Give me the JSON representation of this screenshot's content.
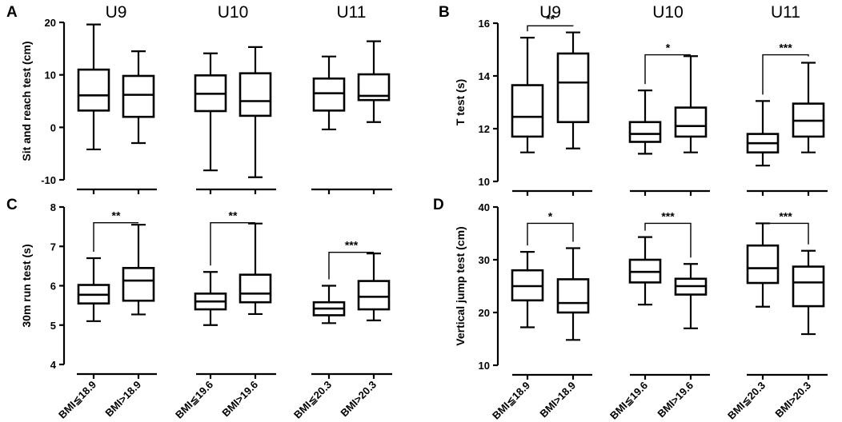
{
  "chart_data": [
    {
      "panel": "A",
      "type": "box",
      "group_titles": [
        "U9",
        "U10",
        "U11"
      ],
      "ylabel": "Sit and reach test (cm)",
      "ylim": [
        -10,
        20
      ],
      "yticks": [
        -10,
        0,
        10,
        20
      ],
      "categories": [
        "BMI≦18.9",
        "BMI>18.9",
        "BMI≦19.6",
        "BMI>19.6",
        "BMI≦20.3",
        "BMI>20.3"
      ],
      "boxes": [
        {
          "min": -4.2,
          "q1": 3.2,
          "median": 6.1,
          "q3": 11.0,
          "max": 19.6
        },
        {
          "min": -3.0,
          "q1": 2.0,
          "median": 6.2,
          "q3": 9.8,
          "max": 14.5
        },
        {
          "min": -8.2,
          "q1": 3.1,
          "median": 6.4,
          "q3": 9.9,
          "max": 14.1
        },
        {
          "min": -9.5,
          "q1": 2.2,
          "median": 5.0,
          "q3": 10.3,
          "max": 15.3
        },
        {
          "min": -0.4,
          "q1": 3.2,
          "median": 6.5,
          "q3": 9.3,
          "max": 13.5
        },
        {
          "min": 1.0,
          "q1": 5.2,
          "median": 6.0,
          "q3": 10.1,
          "max": 16.4
        }
      ],
      "significance": []
    },
    {
      "panel": "B",
      "type": "box",
      "group_titles": [
        "U9",
        "U10",
        "U11"
      ],
      "ylabel": "T test (s)",
      "ylim": [
        10,
        16
      ],
      "yticks": [
        10,
        12,
        14,
        16
      ],
      "categories": [
        "BMI≦18.9",
        "BMI>18.9",
        "BMI≦19.6",
        "BMI>19.6",
        "BMI≦20.3",
        "BMI>20.3"
      ],
      "boxes": [
        {
          "min": 11.1,
          "q1": 11.7,
          "median": 12.45,
          "q3": 13.65,
          "max": 15.45
        },
        {
          "min": 11.25,
          "q1": 12.25,
          "median": 13.75,
          "q3": 14.85,
          "max": 15.65
        },
        {
          "min": 11.05,
          "q1": 11.5,
          "median": 11.8,
          "q3": 12.25,
          "max": 13.45
        },
        {
          "min": 11.1,
          "q1": 11.7,
          "median": 12.1,
          "q3": 12.8,
          "max": 14.75
        },
        {
          "min": 10.6,
          "q1": 11.1,
          "median": 11.45,
          "q3": 11.8,
          "max": 13.05
        },
        {
          "min": 11.1,
          "q1": 11.7,
          "median": 12.3,
          "q3": 12.95,
          "max": 14.5
        }
      ],
      "significance": [
        {
          "pair": [
            0,
            1
          ],
          "label": "**",
          "y": 15.9
        },
        {
          "pair": [
            2,
            3
          ],
          "label": "*",
          "y": 14.8
        },
        {
          "pair": [
            4,
            5
          ],
          "label": "***",
          "y": 14.8
        }
      ]
    },
    {
      "panel": "C",
      "type": "box",
      "ylabel": "30m run test (s)",
      "ylim": [
        4,
        8
      ],
      "yticks": [
        4,
        5,
        6,
        7,
        8
      ],
      "categories": [
        "BMI≦18.9",
        "BMI>18.9",
        "BMI≦19.6",
        "BMI>19.6",
        "BMI≦20.3",
        "BMI>20.3"
      ],
      "boxes": [
        {
          "min": 5.1,
          "q1": 5.55,
          "median": 5.77,
          "q3": 6.02,
          "max": 6.7
        },
        {
          "min": 5.27,
          "q1": 5.62,
          "median": 6.13,
          "q3": 6.45,
          "max": 7.55
        },
        {
          "min": 5.0,
          "q1": 5.4,
          "median": 5.6,
          "q3": 5.8,
          "max": 6.35
        },
        {
          "min": 5.28,
          "q1": 5.58,
          "median": 5.8,
          "q3": 6.28,
          "max": 7.58
        },
        {
          "min": 5.05,
          "q1": 5.25,
          "median": 5.42,
          "q3": 5.58,
          "max": 6.0
        },
        {
          "min": 5.12,
          "q1": 5.4,
          "median": 5.72,
          "q3": 6.12,
          "max": 6.82
        }
      ],
      "significance": [
        {
          "pair": [
            0,
            1
          ],
          "label": "**",
          "y": 7.6
        },
        {
          "pair": [
            2,
            3
          ],
          "label": "**",
          "y": 7.6
        },
        {
          "pair": [
            4,
            5
          ],
          "label": "***",
          "y": 6.85
        }
      ]
    },
    {
      "panel": "D",
      "type": "box",
      "ylabel": "Vertical jump test (cm)",
      "ylim": [
        10,
        40
      ],
      "yticks": [
        10,
        20,
        30,
        40
      ],
      "categories": [
        "BMI≦18.9",
        "BMI>18.9",
        "BMI≦19.6",
        "BMI>19.6",
        "BMI≦20.3",
        "BMI>20.3"
      ],
      "boxes": [
        {
          "min": 17.2,
          "q1": 22.3,
          "median": 25.0,
          "q3": 28.0,
          "max": 31.5
        },
        {
          "min": 14.8,
          "q1": 20.0,
          "median": 21.8,
          "q3": 26.3,
          "max": 32.2
        },
        {
          "min": 21.5,
          "q1": 25.7,
          "median": 27.7,
          "q3": 30.0,
          "max": 34.3
        },
        {
          "min": 17.0,
          "q1": 23.4,
          "median": 25.0,
          "q3": 26.4,
          "max": 29.2
        },
        {
          "min": 21.1,
          "q1": 25.6,
          "median": 28.4,
          "q3": 32.7,
          "max": 36.9
        },
        {
          "min": 15.9,
          "q1": 21.2,
          "median": 25.7,
          "q3": 28.7,
          "max": 31.7
        }
      ],
      "significance": [
        {
          "pair": [
            0,
            1
          ],
          "label": "*",
          "y": 36.9
        },
        {
          "pair": [
            2,
            3
          ],
          "label": "***",
          "y": 36.9
        },
        {
          "pair": [
            4,
            5
          ],
          "label": "***",
          "y": 36.9
        }
      ]
    }
  ]
}
